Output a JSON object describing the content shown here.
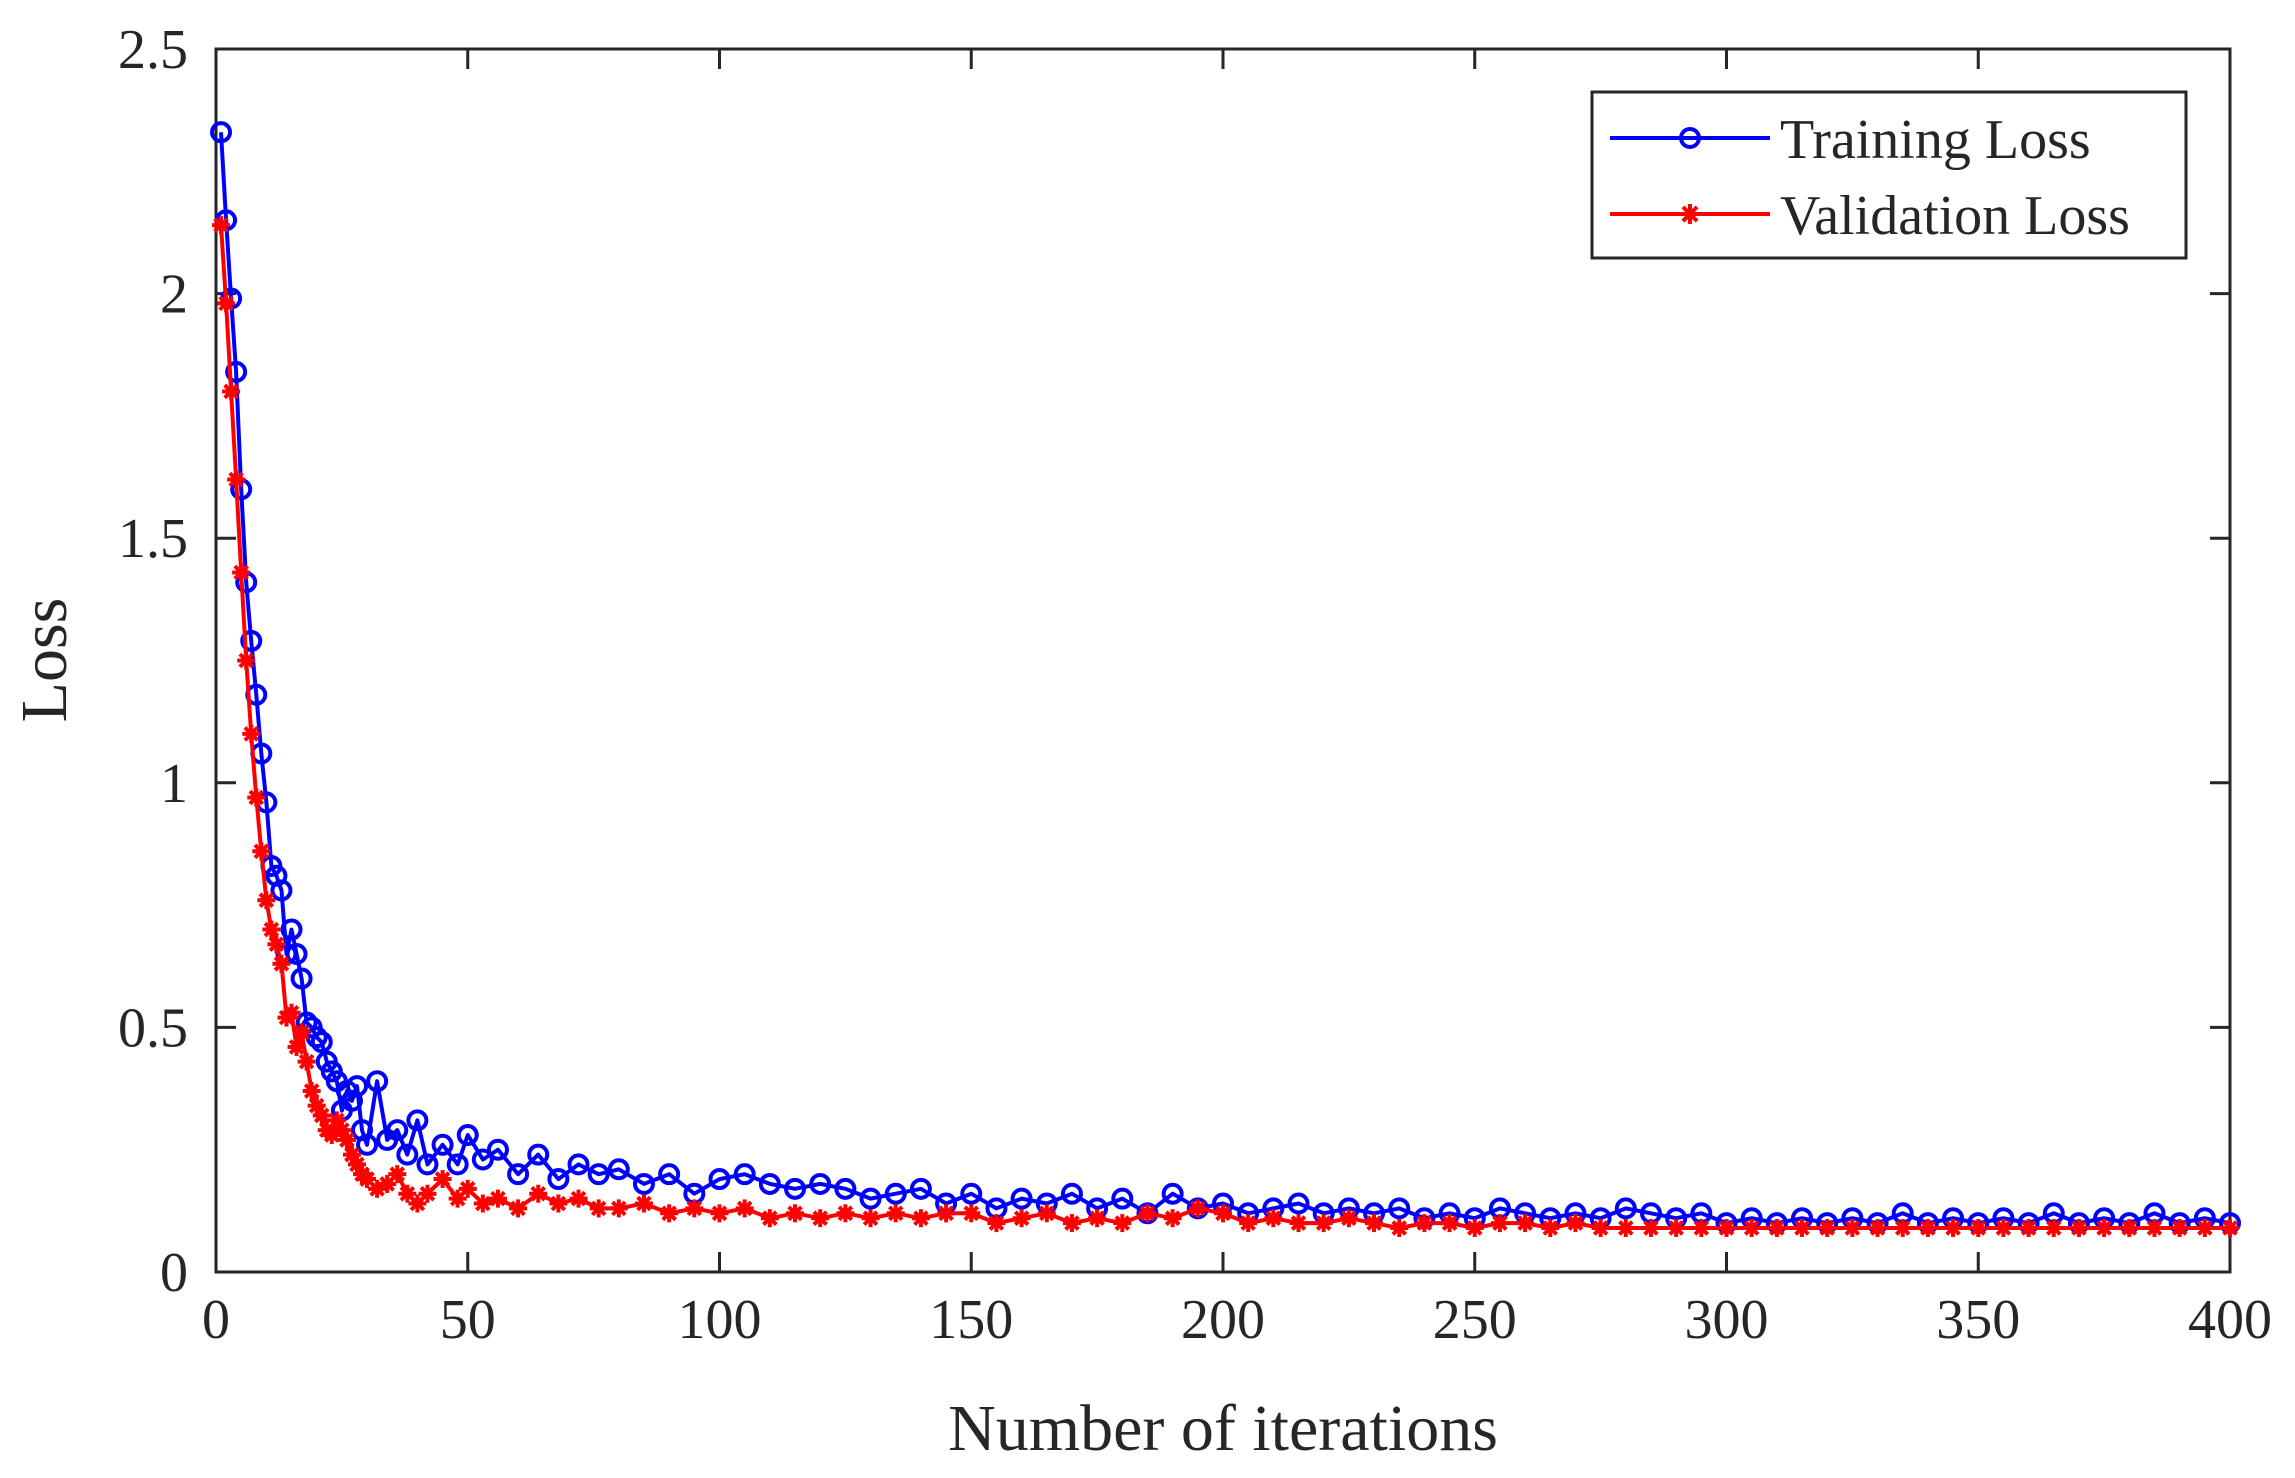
{
  "chart_data": {
    "type": "line",
    "title": "",
    "xlabel": "Number of iterations",
    "ylabel": "Loss",
    "xlim": [
      0,
      400
    ],
    "ylim": [
      0,
      2.5
    ],
    "xticks": [
      0,
      50,
      100,
      150,
      200,
      250,
      300,
      350,
      400
    ],
    "xtick_labels": [
      "0",
      "50",
      "100",
      "150",
      "200",
      "250",
      "300",
      "350",
      "400"
    ],
    "yticks": [
      0,
      0.5,
      1,
      1.5,
      2,
      2.5
    ],
    "ytick_labels": [
      "0",
      "0.5",
      "1",
      "1.5",
      "2",
      "2.5"
    ],
    "grid": false,
    "legend_position": "top-right",
    "series": [
      {
        "name": "Training Loss",
        "color": "#0000ff",
        "marker": "circle",
        "x": [
          1,
          2,
          3,
          4,
          5,
          6,
          7,
          8,
          9,
          10,
          11,
          12,
          13,
          14,
          15,
          16,
          17,
          18,
          19,
          20,
          21,
          22,
          23,
          24,
          25,
          26,
          27,
          28,
          29,
          30,
          32,
          34,
          36,
          38,
          40,
          42,
          45,
          48,
          50,
          53,
          56,
          60,
          64,
          68,
          72,
          76,
          80,
          85,
          90,
          95,
          100,
          105,
          110,
          115,
          120,
          125,
          130,
          135,
          140,
          145,
          150,
          155,
          160,
          165,
          170,
          175,
          180,
          185,
          190,
          195,
          200,
          205,
          210,
          215,
          220,
          225,
          230,
          235,
          240,
          245,
          250,
          255,
          260,
          265,
          270,
          275,
          280,
          285,
          290,
          295,
          300,
          305,
          310,
          315,
          320,
          325,
          330,
          335,
          340,
          345,
          350,
          355,
          360,
          365,
          370,
          375,
          380,
          385,
          390,
          395,
          400
        ],
        "values": [
          2.33,
          2.15,
          1.99,
          1.84,
          1.6,
          1.41,
          1.29,
          1.18,
          1.06,
          0.96,
          0.83,
          0.81,
          0.78,
          0.65,
          0.7,
          0.65,
          0.6,
          0.51,
          0.5,
          0.48,
          0.47,
          0.43,
          0.41,
          0.39,
          0.33,
          0.37,
          0.35,
          0.38,
          0.29,
          0.26,
          0.39,
          0.27,
          0.29,
          0.24,
          0.31,
          0.22,
          0.26,
          0.22,
          0.28,
          0.23,
          0.25,
          0.2,
          0.24,
          0.19,
          0.22,
          0.2,
          0.21,
          0.18,
          0.2,
          0.16,
          0.19,
          0.2,
          0.18,
          0.17,
          0.18,
          0.17,
          0.15,
          0.16,
          0.17,
          0.14,
          0.16,
          0.13,
          0.15,
          0.14,
          0.16,
          0.13,
          0.15,
          0.12,
          0.16,
          0.13,
          0.14,
          0.12,
          0.13,
          0.14,
          0.12,
          0.13,
          0.12,
          0.13,
          0.11,
          0.12,
          0.11,
          0.13,
          0.12,
          0.11,
          0.12,
          0.11,
          0.13,
          0.12,
          0.11,
          0.12,
          0.1,
          0.11,
          0.1,
          0.11,
          0.1,
          0.11,
          0.1,
          0.12,
          0.1,
          0.11,
          0.1,
          0.11,
          0.1,
          0.12,
          0.1,
          0.11,
          0.1,
          0.12,
          0.1,
          0.11,
          0.1
        ]
      },
      {
        "name": "Validation Loss",
        "color": "#ff0000",
        "marker": "asterisk",
        "x": [
          1,
          2,
          3,
          4,
          5,
          6,
          7,
          8,
          9,
          10,
          11,
          12,
          13,
          14,
          15,
          16,
          17,
          18,
          19,
          20,
          21,
          22,
          23,
          24,
          25,
          26,
          27,
          28,
          29,
          30,
          32,
          34,
          36,
          38,
          40,
          42,
          45,
          48,
          50,
          53,
          56,
          60,
          64,
          68,
          72,
          76,
          80,
          85,
          90,
          95,
          100,
          105,
          110,
          115,
          120,
          125,
          130,
          135,
          140,
          145,
          150,
          155,
          160,
          165,
          170,
          175,
          180,
          185,
          190,
          195,
          200,
          205,
          210,
          215,
          220,
          225,
          230,
          235,
          240,
          245,
          250,
          255,
          260,
          265,
          270,
          275,
          280,
          285,
          290,
          295,
          300,
          305,
          310,
          315,
          320,
          325,
          330,
          335,
          340,
          345,
          350,
          355,
          360,
          365,
          370,
          375,
          380,
          385,
          390,
          395,
          400
        ],
        "values": [
          2.14,
          1.98,
          1.8,
          1.62,
          1.43,
          1.25,
          1.1,
          0.97,
          0.86,
          0.76,
          0.7,
          0.67,
          0.63,
          0.52,
          0.53,
          0.46,
          0.49,
          0.43,
          0.37,
          0.34,
          0.32,
          0.29,
          0.28,
          0.31,
          0.29,
          0.27,
          0.24,
          0.22,
          0.2,
          0.19,
          0.17,
          0.18,
          0.2,
          0.16,
          0.14,
          0.16,
          0.19,
          0.15,
          0.17,
          0.14,
          0.15,
          0.13,
          0.16,
          0.14,
          0.15,
          0.13,
          0.13,
          0.14,
          0.12,
          0.13,
          0.12,
          0.13,
          0.11,
          0.12,
          0.11,
          0.12,
          0.11,
          0.12,
          0.11,
          0.12,
          0.12,
          0.1,
          0.11,
          0.12,
          0.1,
          0.11,
          0.1,
          0.12,
          0.11,
          0.13,
          0.12,
          0.1,
          0.11,
          0.1,
          0.1,
          0.11,
          0.1,
          0.09,
          0.1,
          0.1,
          0.09,
          0.1,
          0.1,
          0.09,
          0.1,
          0.09,
          0.09,
          0.09,
          0.09,
          0.09,
          0.09,
          0.09,
          0.09,
          0.09,
          0.09,
          0.09,
          0.09,
          0.09,
          0.09,
          0.09,
          0.09,
          0.09,
          0.09,
          0.09,
          0.09,
          0.09,
          0.09,
          0.09,
          0.09,
          0.09,
          0.09
        ]
      }
    ]
  }
}
